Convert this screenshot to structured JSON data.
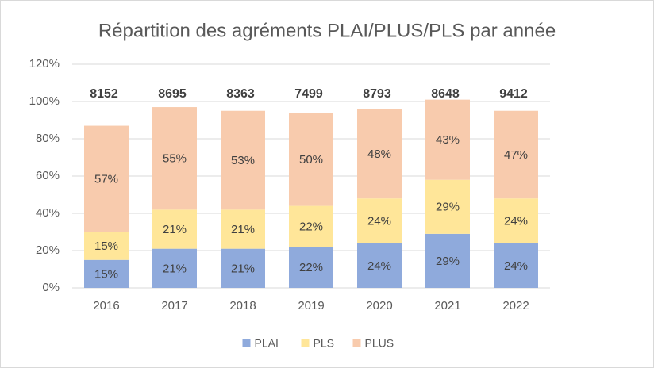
{
  "chart_data": {
    "type": "stacked_bar",
    "title": "Répartition des agréments PLAI/PLUS/PLS par année",
    "categories": [
      "2016",
      "2017",
      "2018",
      "2019",
      "2020",
      "2021",
      "2022"
    ],
    "series": [
      {
        "name": "PLAI",
        "color": "#8faadc",
        "values": [
          15,
          21,
          21,
          22,
          24,
          29,
          24
        ],
        "value_labels": [
          "15%",
          "21%",
          "21%",
          "22%",
          "24%",
          "29%",
          "24%"
        ]
      },
      {
        "name": "PLS",
        "color": "#ffe699",
        "values": [
          15,
          21,
          21,
          22,
          24,
          29,
          24
        ],
        "value_labels": [
          "15%",
          "21%",
          "21%",
          "22%",
          "24%",
          "29%",
          "24%"
        ]
      },
      {
        "name": "PLUS",
        "color": "#f8cbad",
        "values": [
          57,
          55,
          53,
          50,
          48,
          43,
          47
        ],
        "value_labels": [
          "57%",
          "55%",
          "53%",
          "50%",
          "48%",
          "43%",
          "47%"
        ]
      }
    ],
    "annotations": [
      "8152",
      "8695",
      "8363",
      "7499",
      "8793",
      "8648",
      "9412"
    ],
    "ylim": [
      0,
      120
    ],
    "yticks": [
      {
        "value": 0,
        "label": "0%"
      },
      {
        "value": 20,
        "label": "20%"
      },
      {
        "value": 40,
        "label": "40%"
      },
      {
        "value": 60,
        "label": "60%"
      },
      {
        "value": 80,
        "label": "80%"
      },
      {
        "value": 100,
        "label": "100%"
      },
      {
        "value": 120,
        "label": "120%"
      }
    ],
    "grid": true,
    "legend": "bottom"
  }
}
